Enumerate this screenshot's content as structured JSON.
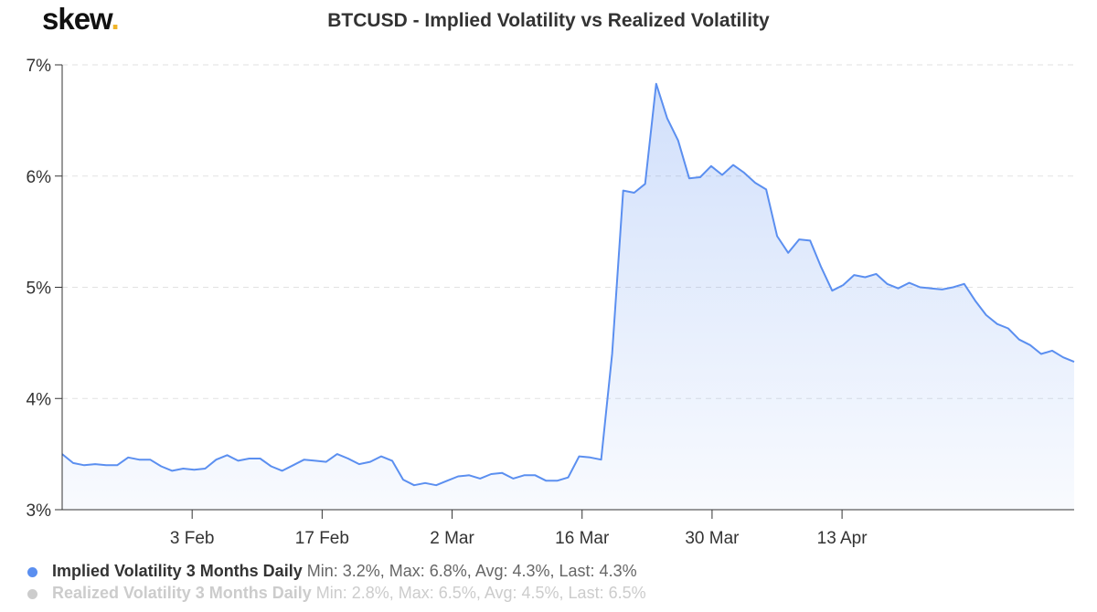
{
  "logo": {
    "text": "skew",
    "dot": "."
  },
  "chart_data": {
    "type": "area",
    "title": "BTCUSD - Implied Volatility vs Realized Volatility",
    "ylim": [
      3,
      7
    ],
    "yticks": [
      "3%",
      "4%",
      "5%",
      "6%",
      "7%"
    ],
    "ytick_values": [
      3,
      4,
      5,
      6,
      7
    ],
    "xlim_day": [
      0,
      109
    ],
    "xticks": [
      {
        "label": "3 Feb",
        "day": 14
      },
      {
        "label": "17 Feb",
        "day": 28
      },
      {
        "label": "2 Mar",
        "day": 42
      },
      {
        "label": "16 Mar",
        "day": 56
      },
      {
        "label": "30 Mar",
        "day": 70
      },
      {
        "label": "13 Apr",
        "day": 84
      }
    ],
    "grid": true,
    "series": [
      {
        "name": "Implied Volatility 3 Months Daily",
        "color": "#5b8ff0",
        "visible": true,
        "stats": "Min: 3.2%, Max: 6.8%, Avg: 4.3%, Last: 4.3%",
        "values": [
          3.5,
          3.42,
          3.4,
          3.41,
          3.4,
          3.4,
          3.47,
          3.45,
          3.45,
          3.39,
          3.35,
          3.37,
          3.36,
          3.37,
          3.45,
          3.49,
          3.44,
          3.46,
          3.46,
          3.39,
          3.35,
          3.4,
          3.45,
          3.44,
          3.43,
          3.5,
          3.46,
          3.41,
          3.43,
          3.48,
          3.44,
          3.27,
          3.22,
          3.24,
          3.22,
          3.26,
          3.3,
          3.31,
          3.28,
          3.32,
          3.33,
          3.28,
          3.31,
          3.31,
          3.26,
          3.26,
          3.29,
          3.48,
          3.47,
          3.45,
          4.4,
          5.87,
          5.85,
          5.93,
          6.83,
          6.52,
          6.32,
          5.98,
          5.99,
          6.09,
          6.01,
          6.1,
          6.03,
          5.94,
          5.88,
          5.46,
          5.31,
          5.43,
          5.42,
          5.18,
          4.97,
          5.02,
          5.11,
          5.09,
          5.12,
          5.03,
          4.99,
          5.04,
          5.0,
          4.99,
          4.98,
          5.0,
          5.03,
          4.88,
          4.75,
          4.67,
          4.63,
          4.53,
          4.48,
          4.4,
          4.43,
          4.37,
          4.33
        ]
      },
      {
        "name": "Realized Volatility 3 Months Daily",
        "color": "#cccccc",
        "visible": false,
        "stats": "Min: 2.8%, Max: 6.5%, Avg: 4.5%, Last: 6.5%"
      }
    ]
  }
}
